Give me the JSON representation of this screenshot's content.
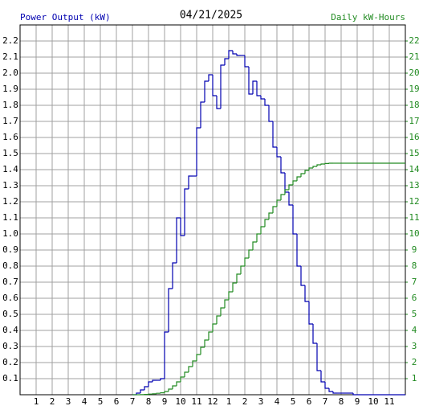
{
  "chart_data": {
    "type": "step",
    "title": "04/21/2025",
    "y_label": "Power Output (kW)",
    "y2_label": "Daily kW-Hours",
    "grid": true,
    "xlim": [
      0,
      24
    ],
    "xticks": [
      1,
      2,
      3,
      4,
      5,
      6,
      7,
      8,
      9,
      10,
      11,
      12,
      {
        "value": 13,
        "label": "1"
      },
      {
        "value": 14,
        "label": "2"
      },
      {
        "value": 15,
        "label": "3"
      },
      {
        "value": 16,
        "label": "4"
      },
      {
        "value": 17,
        "label": "5"
      },
      {
        "value": 18,
        "label": "6"
      },
      {
        "value": 19,
        "label": "7"
      },
      {
        "value": 20,
        "label": "8"
      },
      {
        "value": 21,
        "label": "9"
      },
      {
        "value": 22,
        "label": "10"
      },
      {
        "value": 23,
        "label": "11"
      }
    ],
    "ylim": [
      0,
      2.3
    ],
    "yticks": [
      0.1,
      0.2,
      0.3,
      0.4,
      0.5,
      0.6,
      0.7,
      0.8,
      0.9,
      {
        "value": 1,
        "label": "1.0"
      },
      1.1,
      1.2,
      1.3,
      1.4,
      1.5,
      1.6,
      1.7,
      1.8,
      1.9,
      {
        "value": 2,
        "label": "2.0"
      },
      2.1,
      2.2
    ],
    "y2lim": [
      0,
      23
    ],
    "y2ticks": [
      1,
      2,
      3,
      4,
      5,
      6,
      7,
      8,
      9,
      10,
      11,
      12,
      13,
      14,
      15,
      16,
      17,
      18,
      19,
      20,
      21,
      22
    ],
    "x": [
      7,
      7.25,
      7.5,
      7.75,
      8,
      8.25,
      8.5,
      8.75,
      9,
      9.25,
      9.5,
      9.75,
      10,
      10.25,
      10.5,
      10.75,
      11,
      11.25,
      11.5,
      11.75,
      12,
      12.25,
      12.5,
      12.75,
      13,
      13.25,
      13.5,
      13.75,
      14,
      14.25,
      14.5,
      14.75,
      15,
      15.25,
      15.5,
      15.75,
      16,
      16.25,
      16.5,
      16.75,
      17,
      17.25,
      17.5,
      17.75,
      18,
      18.25,
      18.5,
      18.75,
      19,
      19.25,
      19.5,
      19.75,
      20,
      20.25,
      20.5,
      20.75,
      21,
      24
    ],
    "series": [
      {
        "color": "#0000b0",
        "axis": "y",
        "values": [
          0,
          0.01,
          0.03,
          0.05,
          0.08,
          0.09,
          0.09,
          0.1,
          0.39,
          0.66,
          0.82,
          1.1,
          0.99,
          1.28,
          1.36,
          1.36,
          1.66,
          1.82,
          1.95,
          1.99,
          1.86,
          1.78,
          2.05,
          2.09,
          2.14,
          2.12,
          2.11,
          2.11,
          2.04,
          1.87,
          1.95,
          1.86,
          1.84,
          1.8,
          1.7,
          1.54,
          1.48,
          1.38,
          1.26,
          1.18,
          1.0,
          0.8,
          0.68,
          0.58,
          0.44,
          0.32,
          0.15,
          0.08,
          0.04,
          0.02,
          0.01,
          0.01,
          0.01,
          0.01,
          0.01,
          0,
          0,
          null
        ]
      },
      {
        "color": "#228b22",
        "axis": "y2",
        "values": [
          0,
          0,
          0.01,
          0.02,
          0.04,
          0.06,
          0.09,
          0.12,
          0.2,
          0.35,
          0.55,
          0.8,
          1.1,
          1.4,
          1.75,
          2.1,
          2.5,
          2.95,
          3.4,
          3.9,
          4.4,
          4.9,
          5.4,
          5.9,
          6.4,
          6.95,
          7.5,
          8.0,
          8.5,
          9.0,
          9.5,
          10.0,
          10.45,
          10.9,
          11.3,
          11.7,
          12.1,
          12.45,
          12.75,
          13.05,
          13.3,
          13.55,
          13.75,
          13.95,
          14.1,
          14.2,
          14.3,
          14.35,
          14.38,
          14.4,
          14.4,
          14.4,
          14.4,
          14.4,
          14.4,
          14.4,
          14.4,
          14.4
        ]
      }
    ]
  }
}
